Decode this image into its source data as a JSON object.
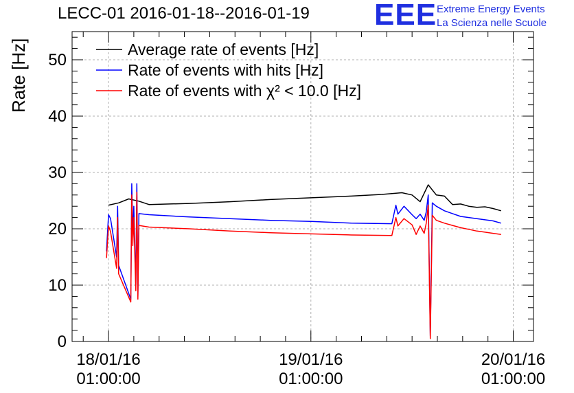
{
  "title": "LECC-01 2016-01-18--2016-01-19",
  "logo": {
    "mark": "EEE",
    "line1": "Extreme Energy Events",
    "line2": "La Scienza nelle Scuole",
    "color": "#1f2fe0"
  },
  "chart_data": {
    "type": "line",
    "title": "LECC-01 2016-01-18--2016-01-19",
    "ylabel": "Rate [Hz]",
    "xlabel": "",
    "xlim": [
      -0.18,
      2.1
    ],
    "ylim": [
      0,
      55
    ],
    "grid": true,
    "legend_position": "top-left",
    "x_ticks": [
      {
        "x": 0,
        "line1": "18/01/16",
        "line2": "01:00:00"
      },
      {
        "x": 1,
        "line1": "19/01/16",
        "line2": "01:00:00"
      },
      {
        "x": 2,
        "line1": "20/01/16",
        "line2": "01:00:00"
      }
    ],
    "y_ticks": [
      0,
      10,
      20,
      30,
      40,
      50
    ],
    "series": [
      {
        "name": "Average rate of events [Hz]",
        "color": "#000000",
        "x": [
          0.0,
          0.05,
          0.1,
          0.15,
          0.2,
          0.4,
          0.6,
          0.8,
          1.0,
          1.2,
          1.35,
          1.45,
          1.5,
          1.54,
          1.58,
          1.62,
          1.66,
          1.7,
          1.74,
          1.78,
          1.82,
          1.86,
          1.9,
          1.94
        ],
        "values": [
          24.2,
          24.6,
          25.3,
          24.9,
          24.3,
          24.5,
          24.8,
          25.2,
          25.5,
          25.8,
          26.1,
          26.4,
          26.0,
          24.8,
          27.8,
          26.0,
          25.8,
          24.3,
          24.4,
          24.0,
          23.8,
          23.9,
          23.6,
          23.2
        ]
      },
      {
        "name": "Rate of events with hits [Hz]",
        "color": "#0000ff",
        "x": [
          -0.01,
          0.0,
          0.01,
          0.04,
          0.045,
          0.05,
          0.11,
          0.115,
          0.12,
          0.125,
          0.135,
          0.14,
          0.145,
          0.15,
          0.2,
          0.4,
          0.6,
          0.8,
          1.0,
          1.2,
          1.4,
          1.42,
          1.43,
          1.46,
          1.5,
          1.52,
          1.54,
          1.56,
          1.57,
          1.58,
          1.59,
          1.6,
          1.62,
          1.66,
          1.7,
          1.74,
          1.78,
          1.82,
          1.86,
          1.9,
          1.94
        ],
        "values": [
          16.0,
          22.5,
          21.8,
          15.0,
          24.0,
          13.5,
          7.5,
          28.0,
          19.0,
          24.0,
          10.0,
          28.0,
          8.0,
          22.7,
          22.5,
          22.1,
          21.8,
          21.5,
          21.3,
          21.0,
          20.9,
          24.2,
          22.6,
          24.0,
          22.5,
          21.8,
          22.6,
          21.5,
          23.0,
          26.0,
          1.0,
          24.6,
          24.0,
          23.2,
          22.7,
          22.2,
          22.0,
          21.8,
          21.6,
          21.4,
          21.0
        ]
      },
      {
        "name": "Rate of events with χ² < 10.0 [Hz]",
        "color": "#ff0000",
        "x": [
          -0.01,
          0.0,
          0.01,
          0.04,
          0.045,
          0.05,
          0.11,
          0.115,
          0.12,
          0.125,
          0.135,
          0.14,
          0.145,
          0.15,
          0.2,
          0.4,
          0.6,
          0.8,
          1.0,
          1.2,
          1.4,
          1.42,
          1.43,
          1.46,
          1.5,
          1.52,
          1.54,
          1.56,
          1.57,
          1.58,
          1.59,
          1.6,
          1.62,
          1.66,
          1.7,
          1.74,
          1.78,
          1.82,
          1.86,
          1.9,
          1.94
        ],
        "values": [
          14.8,
          20.5,
          19.5,
          13.0,
          22.0,
          12.0,
          7.0,
          26.0,
          17.0,
          22.0,
          9.0,
          26.5,
          7.5,
          20.6,
          20.3,
          20.0,
          19.6,
          19.3,
          19.1,
          18.9,
          18.8,
          22.0,
          20.5,
          21.8,
          20.7,
          19.0,
          20.5,
          19.2,
          21.0,
          24.2,
          0.5,
          22.4,
          21.5,
          21.0,
          20.6,
          20.2,
          19.9,
          19.6,
          19.4,
          19.2,
          19.0
        ]
      }
    ]
  }
}
